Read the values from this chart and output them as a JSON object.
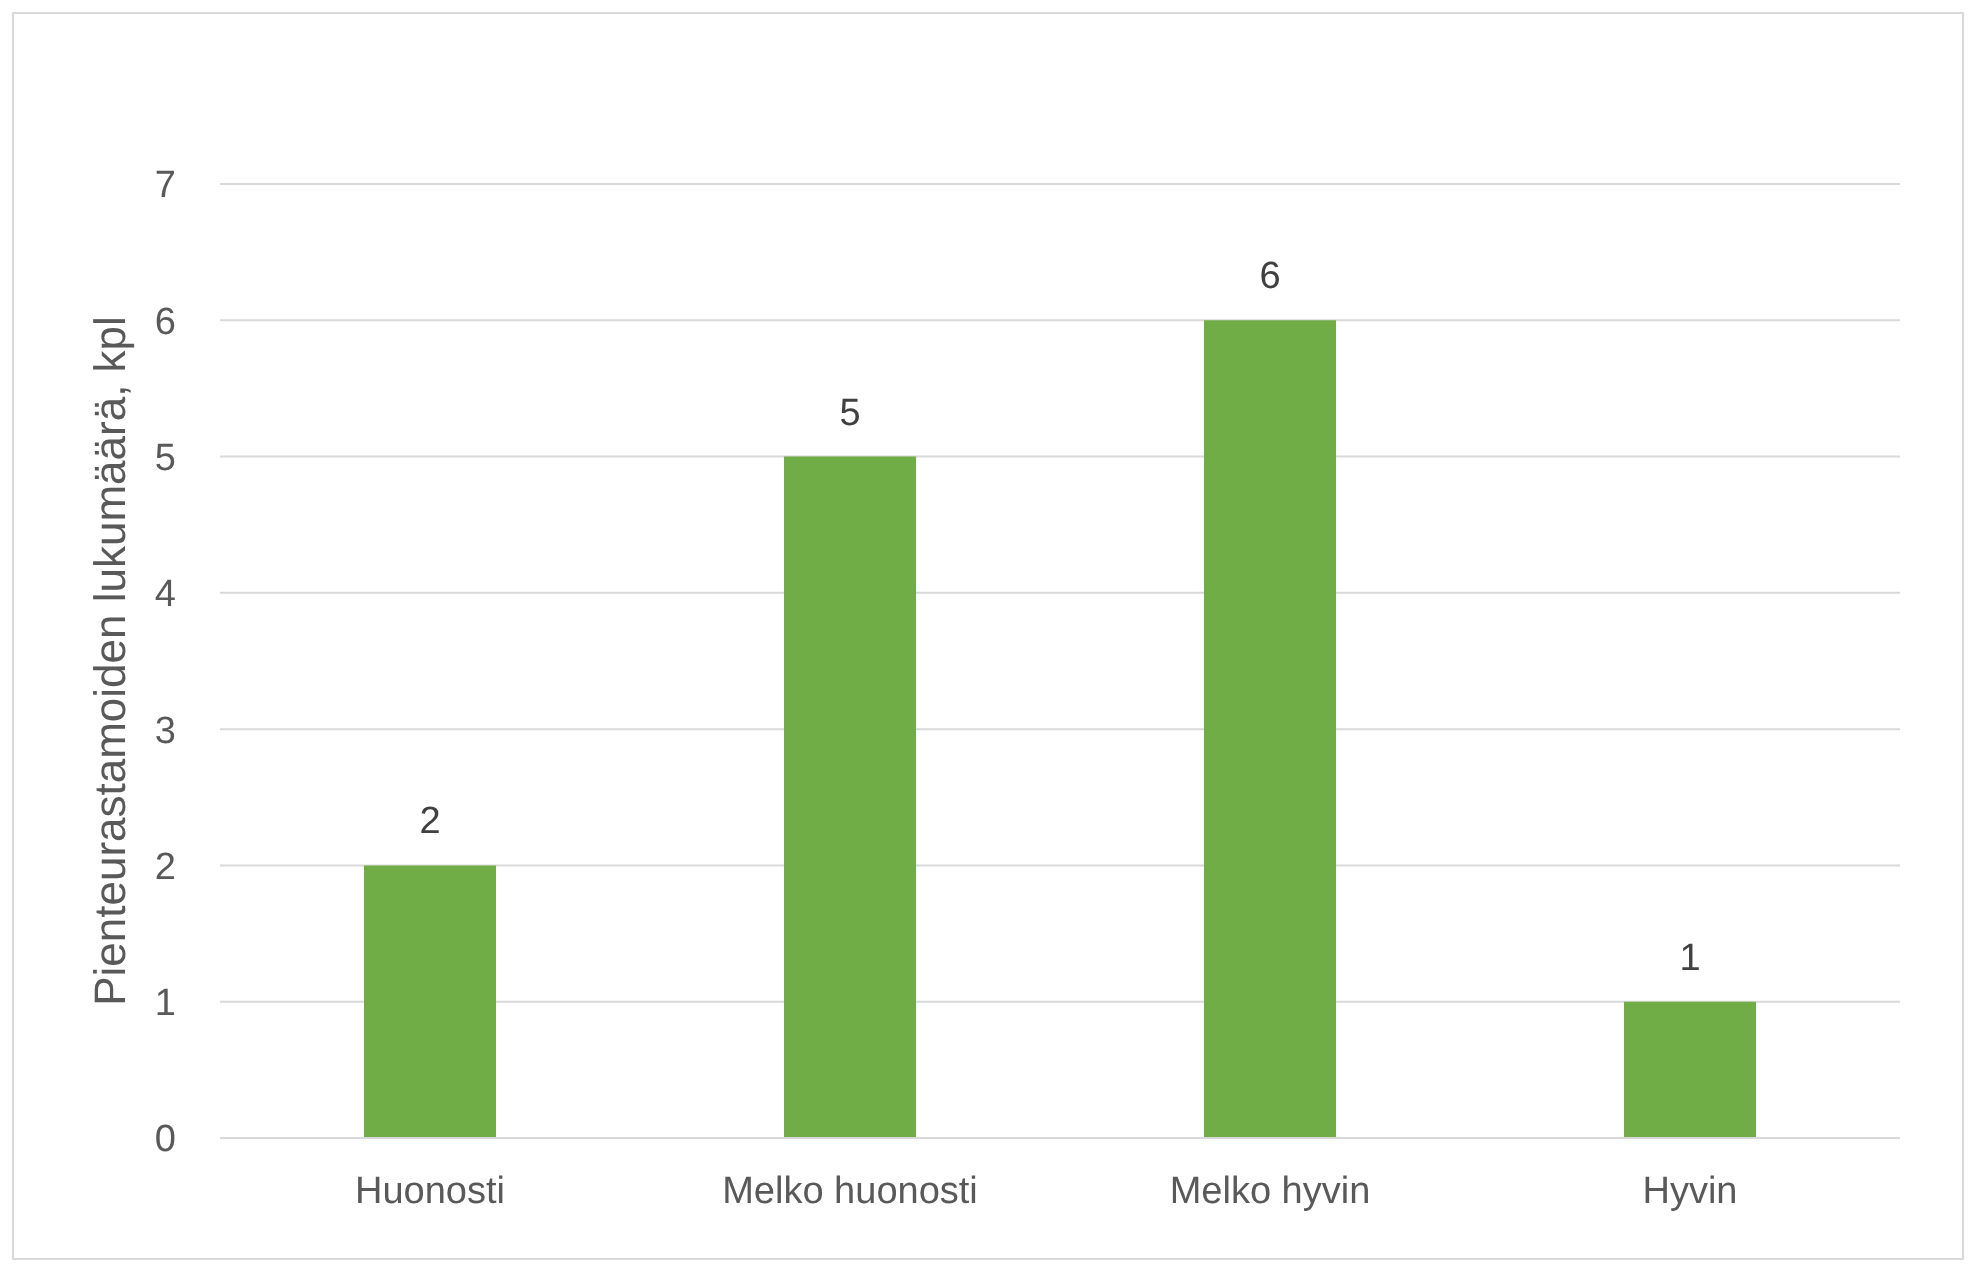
{
  "chart_data": {
    "type": "bar",
    "ylabel": "Pienteurastamoiden lukumäärä, kpl",
    "categories": [
      "Huonosti",
      "Melko huonosti",
      "Melko hyvin",
      "Hyvin"
    ],
    "values": [
      2,
      5,
      6,
      1
    ],
    "color": "#70ad47",
    "ylim": [
      0,
      7
    ],
    "yticks": [
      0,
      1,
      2,
      3,
      4,
      5,
      6,
      7
    ],
    "grid": "y",
    "data_labels": true
  }
}
